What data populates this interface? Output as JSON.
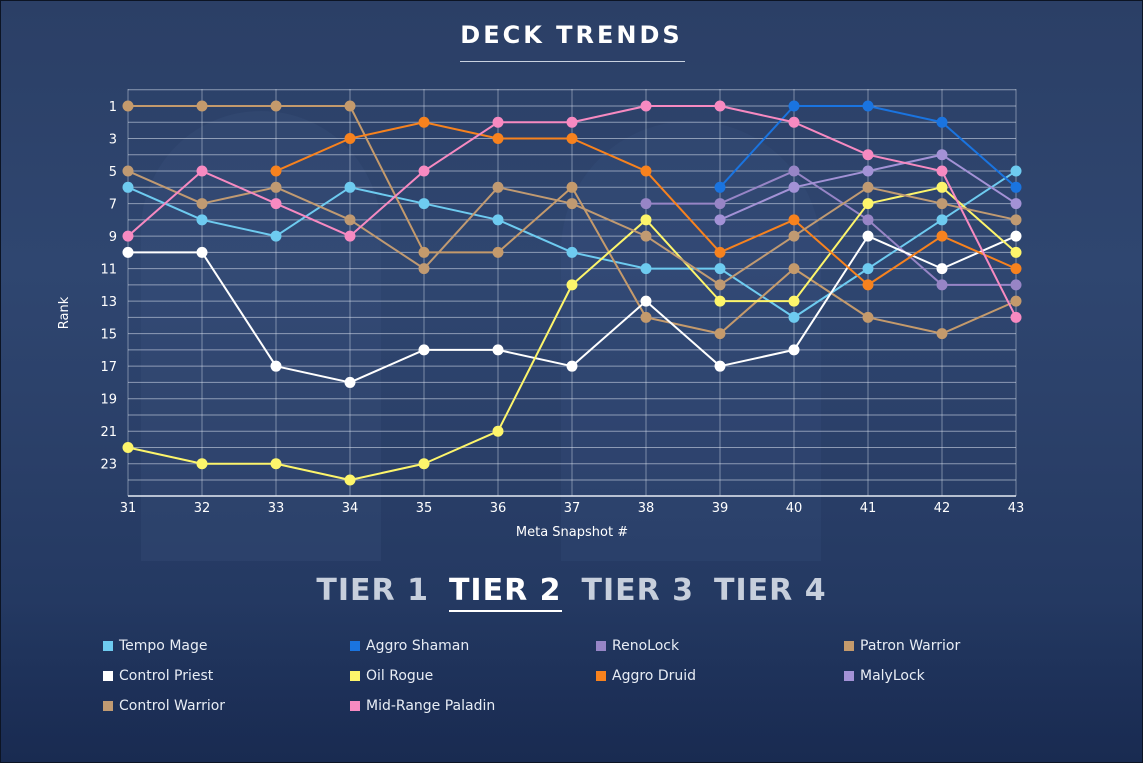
{
  "page_title": "DECK TRENDS",
  "tiers": [
    "TIER 1",
    "TIER 2",
    "TIER 3",
    "TIER 4"
  ],
  "active_tier": 1,
  "chart_data": {
    "type": "line",
    "xlabel": "Meta Snapshot #",
    "ylabel": "Rank",
    "x": [
      31,
      32,
      33,
      34,
      35,
      36,
      37,
      38,
      39,
      40,
      41,
      42,
      43
    ],
    "y_ticks": [
      1,
      3,
      5,
      7,
      9,
      11,
      13,
      15,
      17,
      19,
      21,
      23
    ],
    "ylim": [
      25,
      0
    ],
    "y_inverted": true,
    "grid": true,
    "legend_position": "bottom",
    "series": [
      {
        "name": "Tempo Mage",
        "color": "#6ecbf0",
        "values": [
          6,
          8,
          9,
          6,
          7,
          8,
          10,
          11,
          11,
          14,
          11,
          8,
          5
        ]
      },
      {
        "name": "Aggro Shaman",
        "color": "#1a74e0",
        "values": [
          null,
          null,
          null,
          null,
          null,
          null,
          null,
          null,
          6,
          1,
          1,
          2,
          6
        ]
      },
      {
        "name": "RenoLock",
        "color": "#9785c6",
        "values": [
          null,
          null,
          null,
          null,
          null,
          null,
          null,
          7,
          7,
          5,
          8,
          12,
          12
        ]
      },
      {
        "name": "Patron Warrior",
        "color": "#c49a6c",
        "values": [
          1,
          1,
          1,
          1,
          10,
          10,
          6,
          14,
          15,
          11,
          14,
          15,
          13
        ]
      },
      {
        "name": "Control Priest",
        "color": "#ffffff",
        "values": [
          10,
          10,
          17,
          18,
          16,
          16,
          17,
          13,
          17,
          16,
          9,
          11,
          9
        ]
      },
      {
        "name": "Oil Rogue",
        "color": "#fdf56b",
        "values": [
          22,
          23,
          23,
          24,
          23,
          21,
          12,
          8,
          13,
          13,
          7,
          6,
          10
        ]
      },
      {
        "name": "Aggro Druid",
        "color": "#f7821e",
        "values": [
          null,
          null,
          5,
          3,
          2,
          3,
          3,
          5,
          10,
          8,
          12,
          9,
          11
        ]
      },
      {
        "name": "MalyLock",
        "color": "#a392d6",
        "values": [
          null,
          null,
          null,
          null,
          null,
          null,
          null,
          null,
          8,
          6,
          5,
          4,
          7
        ]
      },
      {
        "name": "Control Warrior",
        "color": "#c09a72",
        "values": [
          5,
          7,
          6,
          8,
          11,
          6,
          7,
          9,
          12,
          9,
          6,
          7,
          8
        ]
      },
      {
        "name": "Mid-Range Paladin",
        "color": "#f78ac1",
        "values": [
          9,
          5,
          7,
          9,
          5,
          2,
          2,
          1,
          1,
          2,
          4,
          5,
          14
        ]
      }
    ]
  }
}
